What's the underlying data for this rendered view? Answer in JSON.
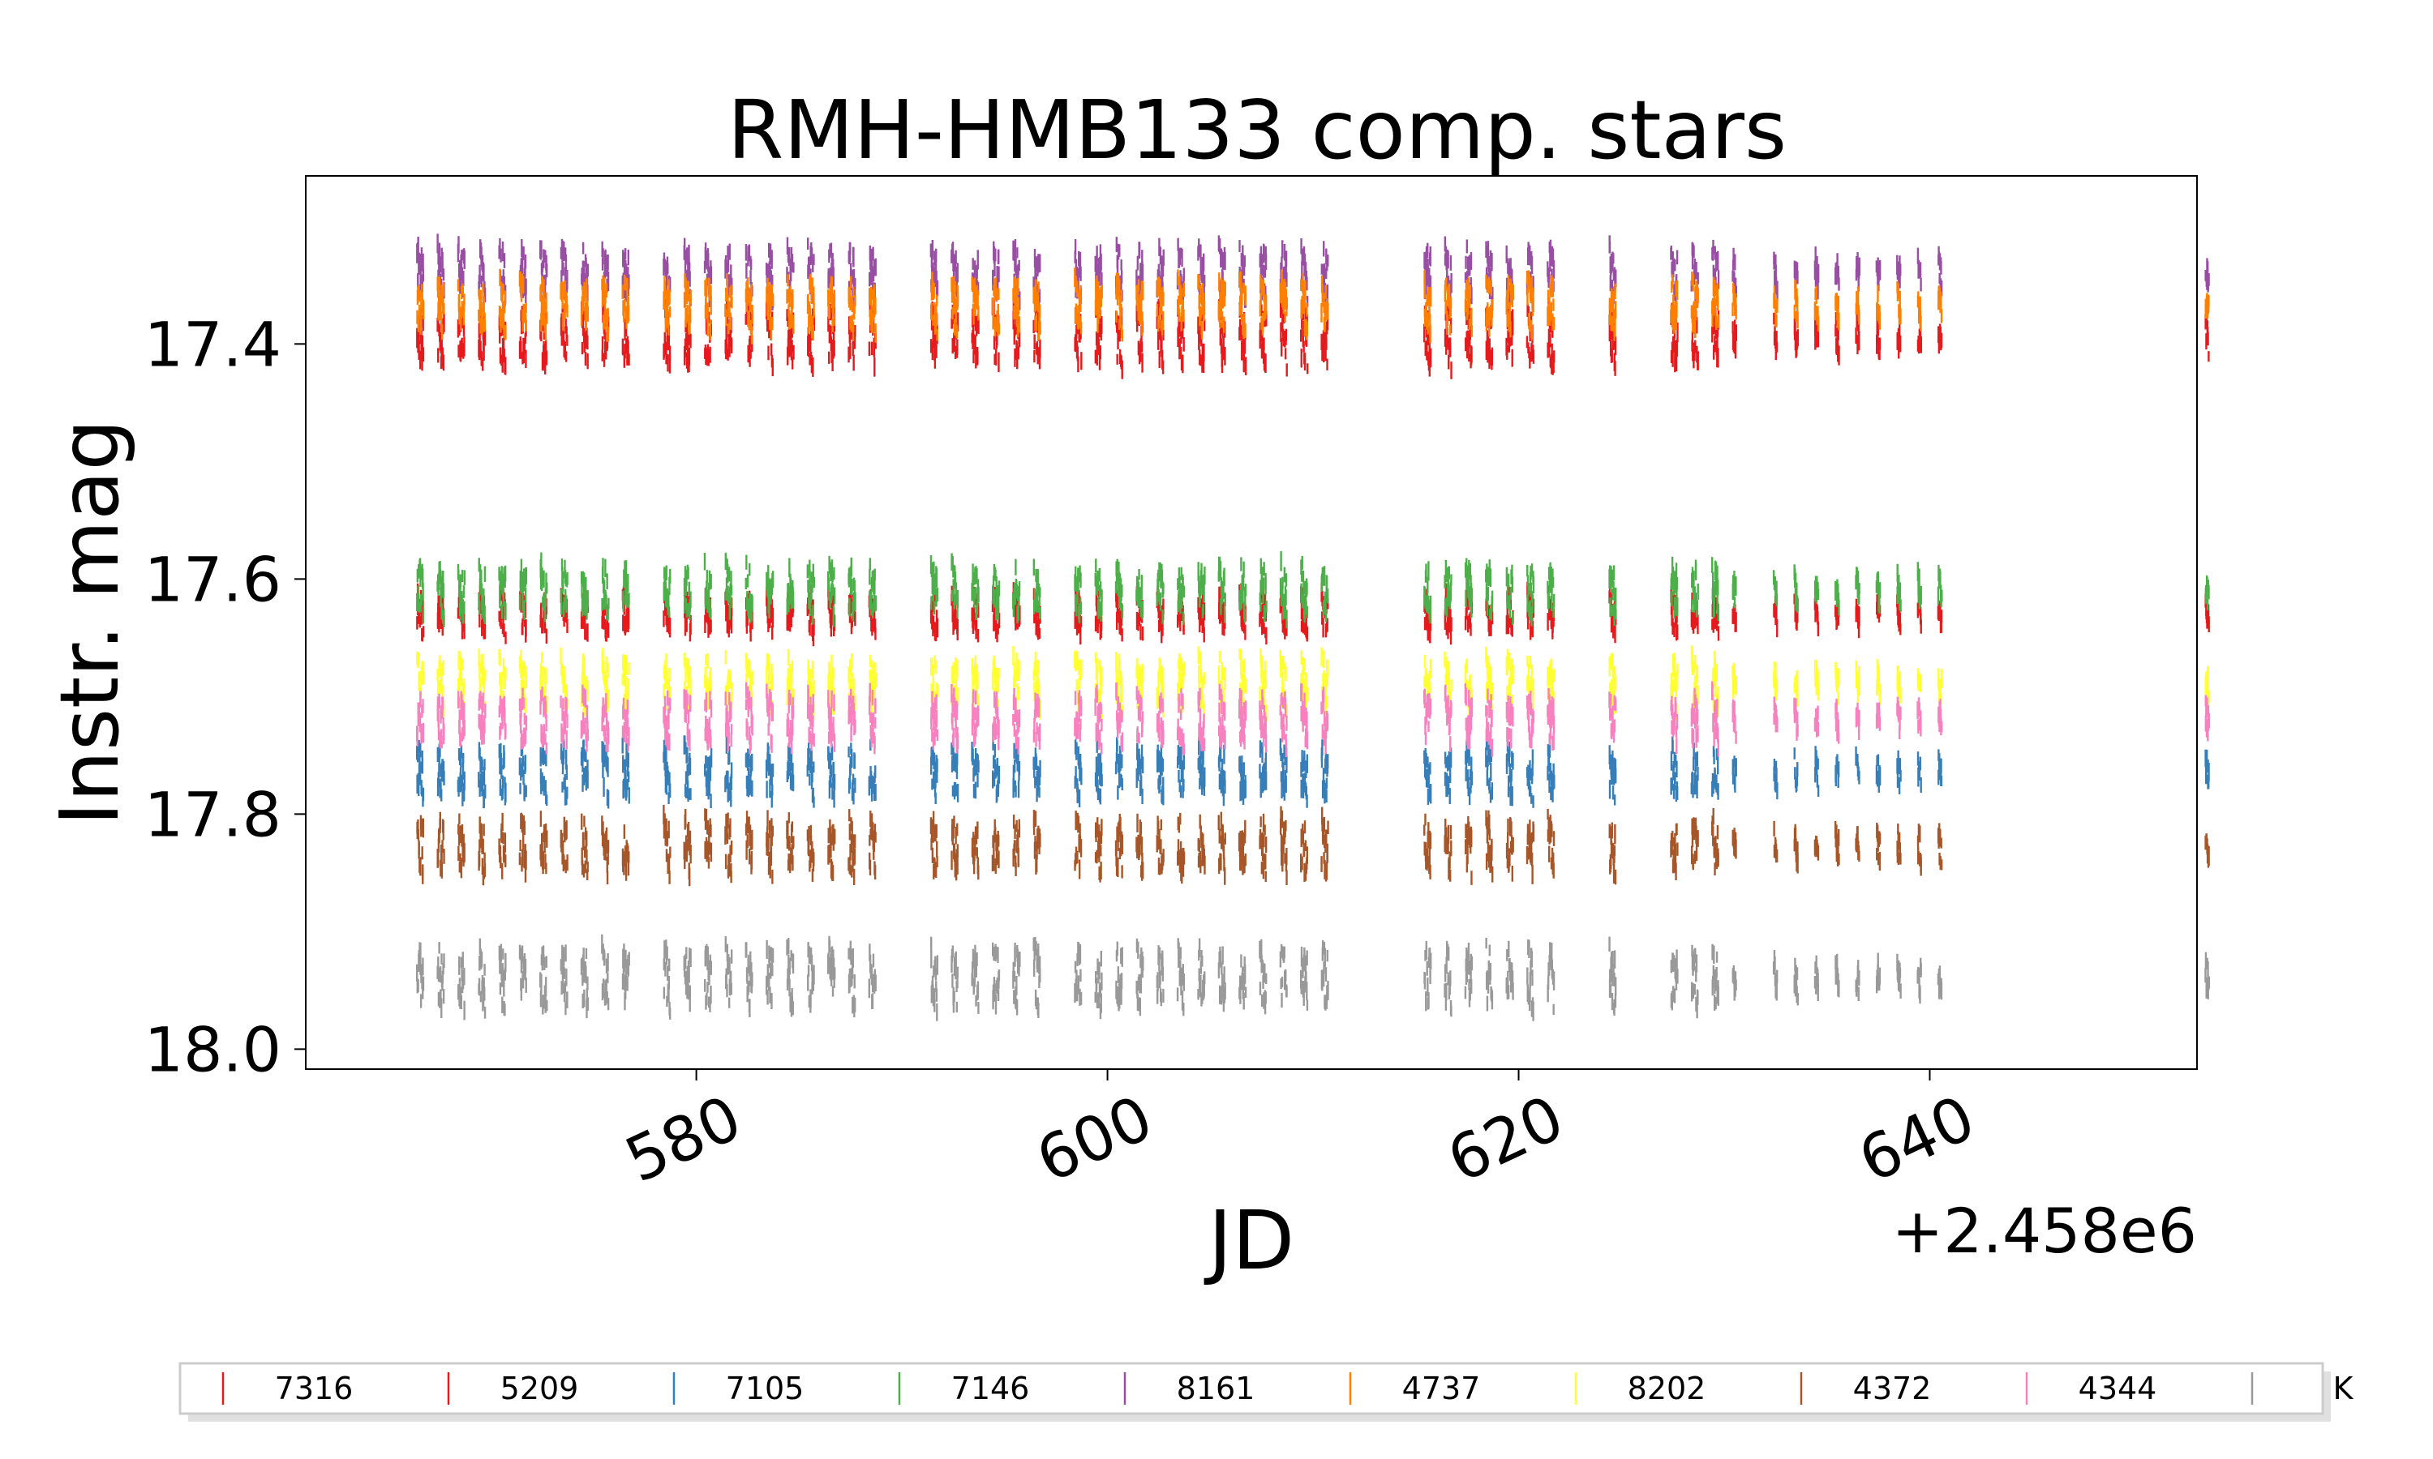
{
  "chart_data": {
    "type": "scatter",
    "title": "RMH-HMB133 comp. stars",
    "xlabel": "JD",
    "ylabel": "Instr. mag",
    "x_offset_label": "+2.458e6",
    "xlim": [
      561,
      653
    ],
    "ylim": [
      18.017,
      17.257
    ],
    "y_inverted": true,
    "x_ticks": [
      580,
      600,
      620,
      640
    ],
    "x_tick_labels": [
      "580",
      "600",
      "620",
      "640"
    ],
    "y_ticks": [
      17.4,
      17.6,
      17.8,
      18.0
    ],
    "y_tick_labels": [
      "17.4",
      "17.6",
      "17.8",
      "18.0"
    ],
    "grid": false,
    "legend_position": "bottom",
    "marker": "vertical-tick",
    "observation_nights_jd": [
      566.6,
      567.6,
      568.6,
      569.6,
      570.6,
      571.6,
      572.6,
      573.6,
      574.6,
      575.6,
      576.6,
      578.6,
      579.6,
      580.6,
      581.6,
      582.6,
      583.6,
      584.6,
      585.6,
      586.6,
      587.6,
      588.6,
      591.6,
      592.6,
      593.6,
      594.6,
      595.6,
      596.6,
      598.6,
      599.6,
      600.6,
      601.6,
      602.6,
      603.6,
      604.6,
      605.6,
      606.6,
      607.6,
      608.6,
      609.6,
      610.6,
      615.6,
      616.6,
      617.6,
      618.6,
      619.6,
      620.6,
      621.6,
      624.6,
      627.6,
      628.6,
      629.6,
      630.6,
      632.6,
      633.6,
      634.6,
      635.6,
      636.6,
      637.6,
      638.6,
      639.6,
      640.6,
      653.6
    ],
    "series": [
      {
        "name": "7316",
        "color": "#e41a1c",
        "mag_center": 17.395,
        "mag_spread": 0.045
      },
      {
        "name": "5209",
        "color": "#e41a1c",
        "mag_center": 17.63,
        "mag_spread": 0.03
      },
      {
        "name": "7105",
        "color": "#377eb8",
        "mag_center": 17.765,
        "mag_spread": 0.04
      },
      {
        "name": "7146",
        "color": "#4daf4a",
        "mag_center": 17.61,
        "mag_spread": 0.04
      },
      {
        "name": "8161",
        "color": "#984ea3",
        "mag_center": 17.34,
        "mag_spread": 0.04
      },
      {
        "name": "4737",
        "color": "#ff7f00",
        "mag_center": 17.368,
        "mag_spread": 0.04
      },
      {
        "name": "8202",
        "color": "#ffff33",
        "mag_center": 17.69,
        "mag_spread": 0.04
      },
      {
        "name": "4372",
        "color": "#a65628",
        "mag_center": 17.828,
        "mag_spread": 0.045
      },
      {
        "name": "4344",
        "color": "#f781bf",
        "mag_center": 17.72,
        "mag_spread": 0.04
      },
      {
        "name": "K",
        "color": "#999999",
        "mag_center": 17.94,
        "mag_spread": 0.05
      }
    ]
  }
}
